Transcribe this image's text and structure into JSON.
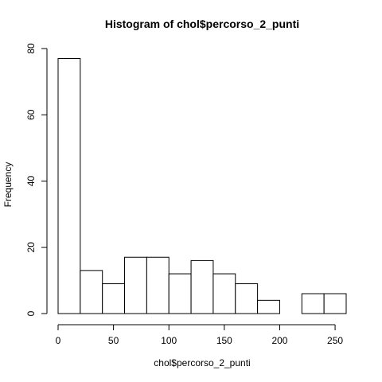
{
  "chart_data": {
    "type": "bar",
    "title": "Histogram of chol$percorso_2_punti",
    "xlabel": "chol$percorso_2_punti",
    "ylabel": "Frequency",
    "bins": [
      {
        "start": 0,
        "end": 20,
        "count": 77
      },
      {
        "start": 20,
        "end": 40,
        "count": 13
      },
      {
        "start": 40,
        "end": 60,
        "count": 9
      },
      {
        "start": 60,
        "end": 80,
        "count": 17
      },
      {
        "start": 80,
        "end": 100,
        "count": 17
      },
      {
        "start": 100,
        "end": 120,
        "count": 12
      },
      {
        "start": 120,
        "end": 140,
        "count": 16
      },
      {
        "start": 140,
        "end": 160,
        "count": 12
      },
      {
        "start": 160,
        "end": 180,
        "count": 9
      },
      {
        "start": 180,
        "end": 200,
        "count": 4
      },
      {
        "start": 200,
        "end": 220,
        "count": 0
      },
      {
        "start": 220,
        "end": 240,
        "count": 6
      },
      {
        "start": 240,
        "end": 260,
        "count": 6
      }
    ],
    "xlim": [
      0,
      260
    ],
    "ylim": [
      0,
      80
    ],
    "x_ticks": [
      "0",
      "50",
      "100",
      "150",
      "200",
      "250"
    ],
    "y_ticks": [
      "0",
      "20",
      "40",
      "60",
      "80"
    ],
    "grid": false
  }
}
